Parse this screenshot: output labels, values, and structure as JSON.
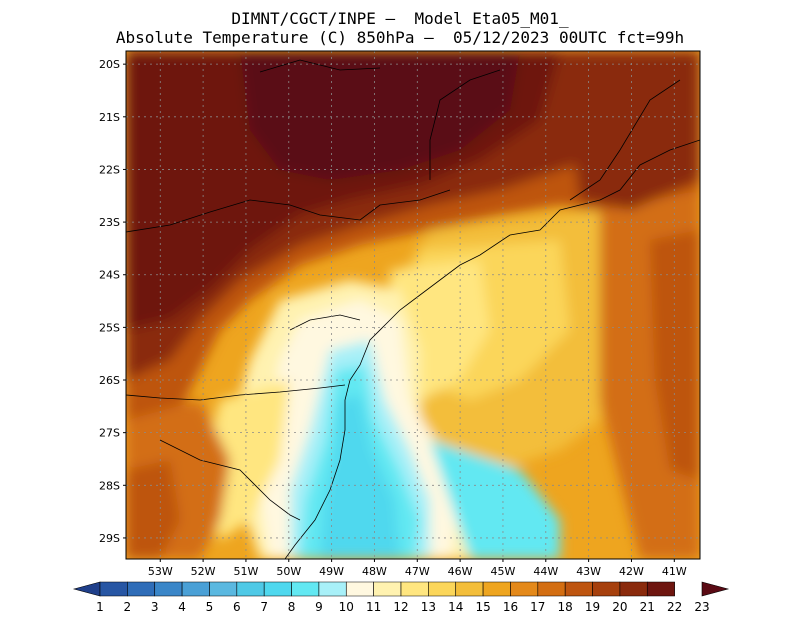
{
  "title": {
    "line1": "DIMNT/CGCT/INPE –  Model Eta05_M01_",
    "line2": "Absolute Temperature (C) 850hPa –  05/12/2023 00UTC fct=99h"
  },
  "map": {
    "lat_labels": [
      "20S",
      "21S",
      "22S",
      "23S",
      "24S",
      "25S",
      "26S",
      "27S",
      "28S",
      "29S"
    ],
    "lon_labels": [
      "53W",
      "52W",
      "51W",
      "50W",
      "49W",
      "48W",
      "47W",
      "46W",
      "45W",
      "44W",
      "43W",
      "42W",
      "41W"
    ],
    "lat_range": [
      -29.4,
      -19.75
    ],
    "lon_range": [
      -53.8,
      -40.4
    ],
    "gridlines": true
  },
  "colorbar": {
    "labels": [
      "1",
      "2",
      "3",
      "4",
      "5",
      "6",
      "7",
      "8",
      "9",
      "10",
      "11",
      "12",
      "13",
      "14",
      "15",
      "16",
      "17",
      "18",
      "19",
      "20",
      "21",
      "22",
      "23"
    ],
    "colors": [
      "#1f3f8a",
      "#2756a4",
      "#2f6db8",
      "#3a86c8",
      "#4aa0d6",
      "#5ab8e0",
      "#4fc9e6",
      "#4fd8ee",
      "#62e8f2",
      "#a8f0f8",
      "#fff8e0",
      "#fff2b0",
      "#ffe680",
      "#fbd65a",
      "#f3be3a",
      "#eea51f",
      "#e4891a",
      "#d36e12",
      "#be5510",
      "#a6400d",
      "#8a2a0c",
      "#6e150f",
      "#5a0a14"
    ]
  }
}
